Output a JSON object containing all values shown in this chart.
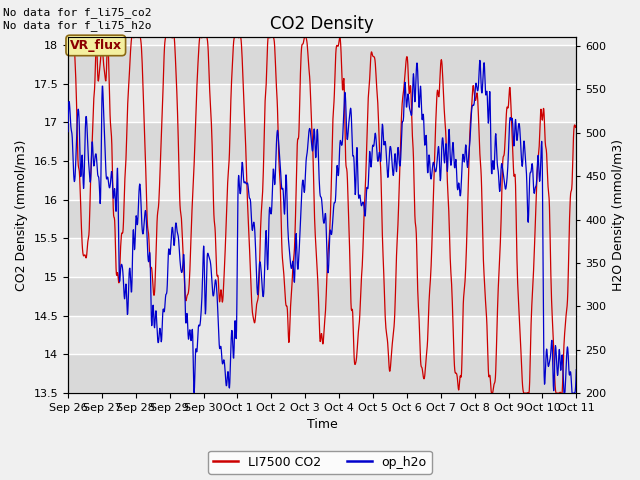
{
  "title": "CO2 Density",
  "xlabel": "Time",
  "ylabel_left": "CO2 Density (mmol/m3)",
  "ylabel_right": "H2O Density (mmol/m3)",
  "ylim_left": [
    13.5,
    18.1
  ],
  "ylim_right": [
    200,
    610
  ],
  "xtick_labels": [
    "Sep 26",
    "Sep 27",
    "Sep 28",
    "Sep 29",
    "Sep 30",
    "Oct 1",
    "Oct 2",
    "Oct 3",
    "Oct 4",
    "Oct 5",
    "Oct 6",
    "Oct 7",
    "Oct 8",
    "Oct 9",
    "Oct 10",
    "Oct 11"
  ],
  "ytick_left": [
    13.5,
    14.0,
    14.5,
    15.0,
    15.5,
    16.0,
    16.5,
    17.0,
    17.5,
    18.0
  ],
  "ytick_right": [
    200,
    250,
    300,
    350,
    400,
    450,
    500,
    550,
    600
  ],
  "annotation_text": "No data for f_li75_co2\nNo data for f_li75_h2o",
  "legend_entries": [
    "LI7500 CO2",
    "op_h2o"
  ],
  "vr_flux_label": "VR_flux",
  "background_color": "#f0f0f0",
  "plot_bg_color": "#e8e8e8",
  "title_fontsize": 12,
  "axis_label_fontsize": 9,
  "tick_fontsize": 8,
  "red_color": "#cc0000",
  "blue_color": "#0000cc",
  "band_color": "#d4d4d4",
  "grid_color": "#ffffff"
}
